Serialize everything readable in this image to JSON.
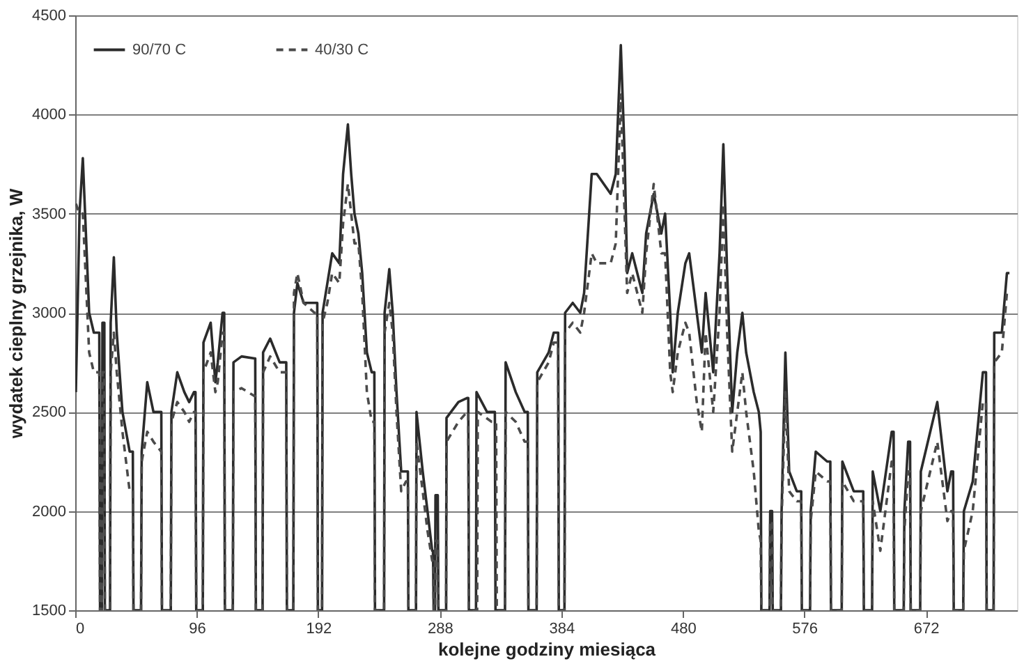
{
  "chart_data": {
    "type": "line",
    "xlabel": "kolejne godziny miesiąca",
    "ylabel": "wydatek cieplny grzejnika, W",
    "xlim": [
      0,
      744
    ],
    "xticks": [
      0,
      96,
      192,
      288,
      384,
      480,
      576,
      672
    ],
    "ylim": [
      1500,
      4500
    ],
    "yticks": [
      1500,
      2000,
      2500,
      3000,
      3500,
      4000,
      4500
    ],
    "grid": "y",
    "legend": "top left",
    "series": [
      {
        "name": "90/70 C",
        "color": "#2b2b2b",
        "line_style": "solid",
        "x": [
          0.5,
          3.4,
          6,
          11,
          14.7,
          19,
          19.6,
          21,
          21.5,
          23,
          23.4,
          27.5,
          28,
          30.5,
          32.8,
          37.3,
          43,
          45.5,
          46,
          52,
          52.5,
          56.9,
          61.8,
          68,
          68.5,
          75.5,
          76,
          80.6,
          86.2,
          90,
          93.8,
          95,
          95.6,
          100.8,
          101.3,
          107,
          110.7,
          112.6,
          116.4,
          117.7,
          118.2,
          124.5,
          125,
          131.4,
          141.6,
          142.2,
          142.7,
          148,
          148.4,
          154,
          161.5,
          165.3,
          166.7,
          167.2,
          172.3,
          172.8,
          175.5,
          180.4,
          189,
          191.2,
          191.7,
          195,
          195.4,
          199.2,
          203,
          208.6,
          211.6,
          215.4,
          218,
          220.6,
          223.7,
          226.7,
          230.4,
          234.2,
          236.3,
          236.8,
          244,
          244.4,
          248.1,
          250.8,
          253.8,
          257.5,
          261.3,
          262.8,
          263.2,
          269.2,
          269.6,
          274.5,
          278.3,
          282,
          282.6,
          283.2,
          284.2,
          284.6,
          286.4,
          286.9,
          293,
          293.3,
          302.7,
          309.5,
          310.5,
          311,
          316.6,
          317,
          325.3,
          331.5,
          332,
          339.5,
          340,
          348,
          355,
          357.5,
          358,
          364.5,
          365,
          374,
          378,
          381.5,
          382,
          386.5,
          387,
          393,
          399,
          402,
          408,
          412,
          423,
          427,
          431,
          434,
          436,
          440,
          448,
          451,
          457,
          463,
          466,
          470,
          472,
          476,
          482,
          485,
          491,
          495,
          498,
          504,
          509,
          512,
          515,
          519,
          523,
          527,
          530,
          536,
          540,
          541.5,
          542,
          548.5,
          549,
          550.5,
          551,
          557.5,
          558,
          561,
          564,
          570,
          573.5,
          574,
          580.5,
          581,
          585,
          594,
          596.5,
          597,
          605.5,
          606,
          615,
          621,
          622.5,
          623,
          629.5,
          630,
          636,
          645,
          646.5,
          647,
          654.5,
          655,
          658,
          659.5,
          660,
          667.5,
          668,
          681,
          689,
          692,
          693.5,
          694,
          701.5,
          702,
          709,
          717,
          719.5,
          720,
          725.5,
          726,
          732,
          736,
          738
        ],
        "values": [
          2600,
          3500,
          3780,
          3000,
          2900,
          2900,
          1500,
          1500,
          2950,
          2950,
          1500,
          1500,
          2950,
          3280,
          2900,
          2500,
          2300,
          2300,
          1500,
          1500,
          2300,
          2650,
          2500,
          2500,
          1500,
          1500,
          2500,
          2700,
          2600,
          2550,
          2600,
          2600,
          1500,
          1500,
          2850,
          2950,
          2650,
          2750,
          3000,
          3000,
          1500,
          1500,
          2750,
          2780,
          2770,
          2770,
          1500,
          1500,
          2800,
          2870,
          2750,
          2750,
          2750,
          1500,
          1500,
          3000,
          3150,
          3050,
          3050,
          3050,
          1500,
          1500,
          3000,
          3150,
          3300,
          3250,
          3700,
          3950,
          3700,
          3500,
          3400,
          3200,
          2800,
          2700,
          2700,
          1500,
          1500,
          3000,
          3220,
          3000,
          2600,
          2200,
          2200,
          2200,
          1500,
          1500,
          2500,
          2200,
          2000,
          1800,
          1800,
          1500,
          1500,
          2080,
          2080,
          1500,
          1500,
          2470,
          2550,
          2570,
          2570,
          1500,
          1500,
          2600,
          2500,
          2500,
          1500,
          1500,
          2750,
          2600,
          2500,
          2500,
          1500,
          1500,
          2700,
          2800,
          2900,
          2900,
          1500,
          1500,
          3000,
          3050,
          3000,
          3100,
          3700,
          3700,
          3600,
          3700,
          4350,
          3800,
          3200,
          3300,
          3100,
          3400,
          3600,
          3400,
          3500,
          3000,
          2700,
          3000,
          3250,
          3300,
          3000,
          2800,
          3100,
          2700,
          3300,
          3850,
          3200,
          2500,
          2800,
          3000,
          2800,
          2600,
          2500,
          2400,
          1500,
          1500,
          2000,
          2000,
          1500,
          1500,
          2000,
          2800,
          2200,
          2100,
          2100,
          1500,
          1500,
          2000,
          2300,
          2250,
          2250,
          1500,
          1500,
          2250,
          2100,
          2100,
          2100,
          1500,
          1500,
          2200,
          2000,
          2400,
          2400,
          1500,
          1500,
          2000,
          2350,
          2350,
          1500,
          1500,
          2200,
          2550,
          2100,
          2200,
          2200,
          1500,
          1500,
          2000,
          2150,
          2700,
          2700,
          1500,
          1500,
          2900,
          2900,
          3200,
          3200
        ]
      },
      {
        "name": "40/30 C",
        "color": "#4a4a4a",
        "line_style": "dashed",
        "x": [
          0.5,
          3.4,
          6,
          11,
          14.7,
          19,
          19.6,
          21,
          21.5,
          23,
          23.4,
          27.5,
          28,
          30.5,
          32.8,
          37.3,
          43,
          45.5,
          46,
          52,
          52.5,
          56.9,
          61.8,
          68,
          68.5,
          75.5,
          76,
          80.6,
          86.2,
          90,
          93.8,
          95,
          95.6,
          100.8,
          101.3,
          107,
          110.7,
          112.6,
          116.4,
          117.7,
          118.2,
          124.5,
          125,
          131.4,
          141.6,
          142.2,
          142.7,
          148,
          148.4,
          154,
          161.5,
          165.3,
          166.7,
          167.2,
          172.3,
          172.8,
          175.5,
          180.4,
          189,
          191.2,
          191.7,
          195,
          195.4,
          199.2,
          203,
          208.6,
          211.6,
          215.4,
          218,
          220.6,
          223.7,
          226.7,
          230.4,
          234.2,
          236.3,
          236.8,
          244,
          244.4,
          248.1,
          250.8,
          253.8,
          257.5,
          261.3,
          262.8,
          263.2,
          269.2,
          269.6,
          274.5,
          278.3,
          282,
          282.6,
          283.2,
          284.2,
          284.6,
          286.4,
          286.9,
          293,
          293.3,
          302.7,
          309.5,
          310.5,
          311,
          317.5,
          318,
          329,
          332.5,
          333,
          339.5,
          340,
          348,
          355,
          357.5,
          358,
          364.5,
          365,
          374,
          378,
          381.5,
          382,
          386.5,
          387,
          393,
          399,
          402,
          408,
          412,
          423,
          427,
          431,
          434,
          436,
          440,
          448,
          451,
          457,
          463,
          466,
          470,
          472,
          476,
          482,
          485,
          491,
          495,
          498,
          504,
          509,
          512,
          515,
          519,
          523,
          527,
          530,
          536,
          540,
          541.5,
          542,
          548.5,
          549,
          550.5,
          551,
          557.5,
          558,
          561,
          564,
          570,
          573.5,
          574,
          580.5,
          581,
          585,
          594,
          596.5,
          597,
          605.5,
          606,
          615,
          621,
          622.5,
          623,
          629.5,
          630,
          636,
          645,
          646.5,
          647,
          654.5,
          655,
          658,
          659.5,
          660,
          667.5,
          668,
          681,
          689,
          692,
          693.5,
          694,
          701.5,
          702,
          709,
          717,
          719.5,
          720,
          725.5,
          726,
          732,
          736,
          738
        ],
        "values": [
          3550,
          3500,
          3500,
          2800,
          2700,
          2700,
          1500,
          1500,
          2700,
          2700,
          1500,
          1500,
          2700,
          2900,
          2700,
          2400,
          2100,
          2100,
          1500,
          1500,
          2250,
          2400,
          2350,
          2300,
          1500,
          1500,
          2450,
          2550,
          2500,
          2450,
          2500,
          2500,
          1500,
          1500,
          2700,
          2800,
          2600,
          2650,
          2900,
          2900,
          1500,
          1500,
          2600,
          2620,
          2580,
          2580,
          1500,
          1500,
          2700,
          2780,
          2700,
          2700,
          2700,
          1500,
          1500,
          3100,
          3200,
          3050,
          3000,
          3000,
          1500,
          1500,
          2950,
          3050,
          3200,
          3150,
          3450,
          3650,
          3500,
          3350,
          3350,
          3100,
          2600,
          2450,
          2450,
          1500,
          1500,
          2900,
          3050,
          2900,
          2500,
          2100,
          2150,
          2150,
          1500,
          1500,
          2350,
          2100,
          1900,
          1750,
          1750,
          1500,
          1500,
          1850,
          1850,
          1500,
          1500,
          2350,
          2450,
          2500,
          2500,
          1500,
          1500,
          2500,
          2450,
          2450,
          1500,
          1500,
          2500,
          2450,
          2350,
          2350,
          1500,
          1500,
          2650,
          2750,
          2850,
          2850,
          1500,
          1500,
          2900,
          2950,
          2900,
          3000,
          3300,
          3250,
          3250,
          3350,
          4100,
          3500,
          3100,
          3200,
          3000,
          3300,
          3650,
          3300,
          3300,
          2700,
          2600,
          2800,
          2950,
          2900,
          2550,
          2400,
          2900,
          2500,
          3000,
          3550,
          2900,
          2300,
          2500,
          2700,
          2500,
          2200,
          1900,
          1850,
          1500,
          1500,
          1950,
          1950,
          1500,
          1500,
          1950,
          2600,
          2100,
          2050,
          2050,
          1500,
          1500,
          1950,
          2200,
          2150,
          2150,
          1500,
          1500,
          2150,
          2050,
          2050,
          2050,
          1500,
          1500,
          2050,
          1800,
          2250,
          2250,
          1500,
          1500,
          1900,
          2200,
          2200,
          1500,
          1500,
          2000,
          2350,
          1950,
          2000,
          2000,
          1500,
          1500,
          1800,
          2000,
          2550,
          2550,
          1500,
          1500,
          2750,
          2800,
          3100,
          3100
        ]
      }
    ]
  }
}
